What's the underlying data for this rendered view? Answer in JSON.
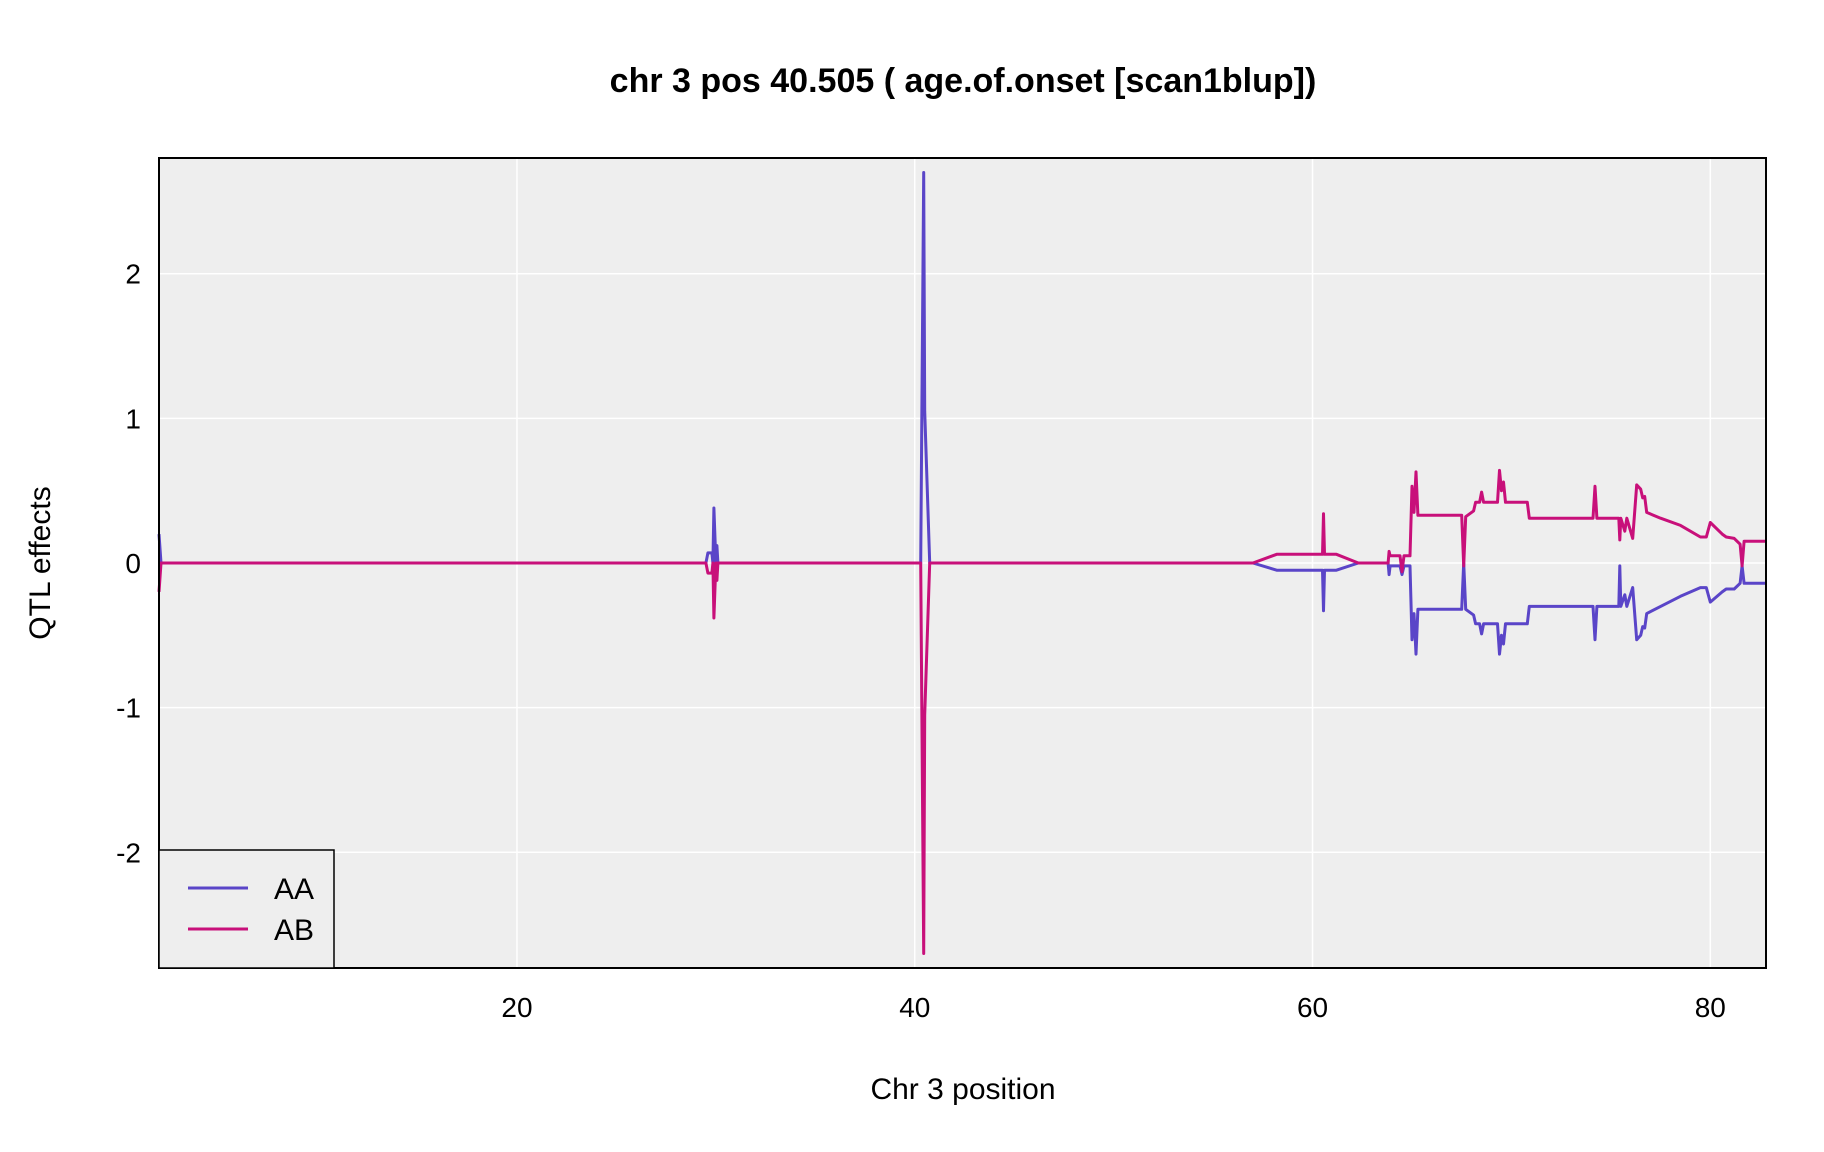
{
  "chart_data": {
    "type": "line",
    "title": "chr 3 pos 40.505 ( age.of.onset  [scan1blup])",
    "xlabel": "Chr 3 position",
    "ylabel": "QTL effects",
    "xlim": [
      2,
      82.8
    ],
    "ylim": [
      -2.8,
      2.8
    ],
    "xticks": [
      20,
      40,
      60,
      80
    ],
    "yticks": [
      -2,
      -1,
      0,
      1,
      2
    ],
    "grid": true,
    "background": "#eeeeee",
    "gridColor": "#ffffff",
    "legend": {
      "position": "bottom-left"
    },
    "series": [
      {
        "name": "AA",
        "color": "#5a45c8",
        "points": [
          [
            2.0,
            0.2
          ],
          [
            2.1,
            0.0
          ],
          [
            29.5,
            0.0
          ],
          [
            29.6,
            0.07
          ],
          [
            29.8,
            0.07
          ],
          [
            29.85,
            0.0
          ],
          [
            29.9,
            0.38
          ],
          [
            30.0,
            0.0
          ],
          [
            30.05,
            0.12
          ],
          [
            30.1,
            0.0
          ],
          [
            40.3,
            0.0
          ],
          [
            40.45,
            2.7
          ],
          [
            40.5,
            1.05
          ],
          [
            40.75,
            0.0
          ],
          [
            57.0,
            0.0
          ],
          [
            58.2,
            -0.05
          ],
          [
            60.5,
            -0.05
          ],
          [
            60.55,
            -0.33
          ],
          [
            60.6,
            -0.05
          ],
          [
            61.2,
            -0.05
          ],
          [
            62.3,
            0.0
          ],
          [
            63.8,
            0.0
          ],
          [
            63.85,
            -0.08
          ],
          [
            63.9,
            -0.02
          ],
          [
            64.4,
            -0.02
          ],
          [
            64.5,
            -0.08
          ],
          [
            64.6,
            -0.02
          ],
          [
            64.9,
            -0.02
          ],
          [
            65.0,
            -0.53
          ],
          [
            65.1,
            -0.35
          ],
          [
            65.2,
            -0.63
          ],
          [
            65.3,
            -0.32
          ],
          [
            67.5,
            -0.32
          ],
          [
            67.6,
            0.0
          ],
          [
            67.7,
            -0.32
          ],
          [
            68.1,
            -0.36
          ],
          [
            68.2,
            -0.42
          ],
          [
            68.4,
            -0.42
          ],
          [
            68.5,
            -0.49
          ],
          [
            68.6,
            -0.42
          ],
          [
            69.3,
            -0.42
          ],
          [
            69.4,
            -0.63
          ],
          [
            69.5,
            -0.5
          ],
          [
            69.6,
            -0.56
          ],
          [
            69.7,
            -0.42
          ],
          [
            70.8,
            -0.42
          ],
          [
            70.9,
            -0.3
          ],
          [
            74.1,
            -0.3
          ],
          [
            74.2,
            -0.53
          ],
          [
            74.3,
            -0.3
          ],
          [
            75.4,
            -0.3
          ],
          [
            75.45,
            -0.02
          ],
          [
            75.5,
            -0.3
          ],
          [
            75.7,
            -0.22
          ],
          [
            75.8,
            -0.3
          ],
          [
            76.1,
            -0.17
          ],
          [
            76.3,
            -0.53
          ],
          [
            76.5,
            -0.5
          ],
          [
            76.6,
            -0.44
          ],
          [
            76.7,
            -0.45
          ],
          [
            76.8,
            -0.35
          ],
          [
            77.5,
            -0.3
          ],
          [
            78.5,
            -0.23
          ],
          [
            79.5,
            -0.17
          ],
          [
            79.8,
            -0.17
          ],
          [
            80.0,
            -0.27
          ],
          [
            80.6,
            -0.2
          ],
          [
            80.8,
            -0.18
          ],
          [
            81.2,
            -0.18
          ],
          [
            81.5,
            -0.14
          ],
          [
            81.6,
            -0.02
          ],
          [
            81.7,
            -0.14
          ],
          [
            82.8,
            -0.14
          ]
        ]
      },
      {
        "name": "AB",
        "color": "#c8107a",
        "points": [
          [
            2.0,
            -0.2
          ],
          [
            2.1,
            0.0
          ],
          [
            29.5,
            0.0
          ],
          [
            29.6,
            -0.07
          ],
          [
            29.8,
            -0.07
          ],
          [
            29.85,
            0.0
          ],
          [
            29.9,
            -0.38
          ],
          [
            30.0,
            0.0
          ],
          [
            30.05,
            -0.12
          ],
          [
            30.1,
            0.0
          ],
          [
            40.3,
            0.0
          ],
          [
            40.45,
            -2.7
          ],
          [
            40.5,
            -1.05
          ],
          [
            40.75,
            0.0
          ],
          [
            57.0,
            0.0
          ],
          [
            58.2,
            0.06
          ],
          [
            60.5,
            0.06
          ],
          [
            60.55,
            0.34
          ],
          [
            60.6,
            0.06
          ],
          [
            61.2,
            0.06
          ],
          [
            62.3,
            0.0
          ],
          [
            63.8,
            0.0
          ],
          [
            63.85,
            0.08
          ],
          [
            63.9,
            0.05
          ],
          [
            64.4,
            0.05
          ],
          [
            64.5,
            -0.06
          ],
          [
            64.6,
            0.05
          ],
          [
            64.9,
            0.05
          ],
          [
            65.0,
            0.53
          ],
          [
            65.1,
            0.35
          ],
          [
            65.2,
            0.63
          ],
          [
            65.3,
            0.33
          ],
          [
            67.5,
            0.33
          ],
          [
            67.6,
            -0.02
          ],
          [
            67.7,
            0.32
          ],
          [
            68.1,
            0.36
          ],
          [
            68.2,
            0.42
          ],
          [
            68.4,
            0.42
          ],
          [
            68.5,
            0.49
          ],
          [
            68.6,
            0.42
          ],
          [
            69.3,
            0.42
          ],
          [
            69.4,
            0.64
          ],
          [
            69.5,
            0.5
          ],
          [
            69.6,
            0.56
          ],
          [
            69.7,
            0.42
          ],
          [
            70.8,
            0.42
          ],
          [
            70.9,
            0.31
          ],
          [
            74.1,
            0.31
          ],
          [
            74.2,
            0.53
          ],
          [
            74.3,
            0.31
          ],
          [
            75.4,
            0.31
          ],
          [
            75.45,
            0.16
          ],
          [
            75.5,
            0.31
          ],
          [
            75.7,
            0.22
          ],
          [
            75.8,
            0.31
          ],
          [
            76.1,
            0.17
          ],
          [
            76.3,
            0.54
          ],
          [
            76.5,
            0.51
          ],
          [
            76.6,
            0.45
          ],
          [
            76.7,
            0.46
          ],
          [
            76.8,
            0.35
          ],
          [
            77.5,
            0.31
          ],
          [
            78.5,
            0.26
          ],
          [
            79.5,
            0.18
          ],
          [
            79.8,
            0.18
          ],
          [
            80.0,
            0.28
          ],
          [
            80.6,
            0.2
          ],
          [
            80.8,
            0.18
          ],
          [
            81.2,
            0.17
          ],
          [
            81.5,
            0.13
          ],
          [
            81.6,
            -0.02
          ],
          [
            81.7,
            0.15
          ],
          [
            82.8,
            0.15
          ]
        ]
      }
    ]
  }
}
